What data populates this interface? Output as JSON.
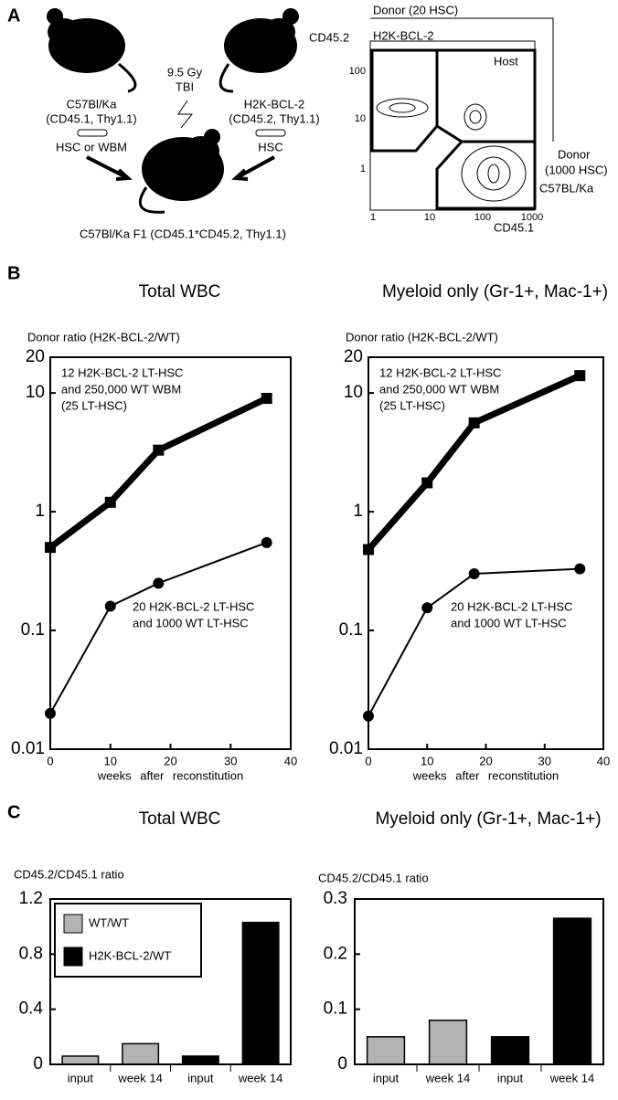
{
  "panel_labels": [
    "A",
    "B",
    "C"
  ],
  "panel_a": {
    "dose": [
      "9.5 Gy",
      "TBI"
    ],
    "donor_left": [
      "C57Bl/Ka",
      "(CD45.1, Thy1.1)"
    ],
    "donor_right": [
      "H2K-BCL-2",
      "(CD45.2, Thy1.1)"
    ],
    "cells_left": "HSC or WBM",
    "cells_right": "HSC",
    "recipient": "C57Bl/Ka F1 (CD45.1*CD45.2, Thy1.1)",
    "flow": {
      "top_label": "Donor (20 HSC)",
      "y_label": "CD45.2",
      "gate_bcl2": "H2K-BCL-2",
      "gate_host": "Host",
      "gate_donor": [
        "Donor",
        "(1000 HSC)",
        "C57BL/Ka"
      ],
      "x_label": "CD45.1",
      "xticks": [
        "1",
        "10",
        "100",
        "1000"
      ],
      "yticks": [
        "1",
        "10",
        "100"
      ]
    }
  },
  "chart_data": [
    {
      "type": "line",
      "title": "Total WBC",
      "ylabel": "Donor ratio (H2K-BCL-2/WT)",
      "xlabel": "weeks after reconstitution",
      "x": [
        0,
        10,
        18,
        36
      ],
      "xlim": [
        0,
        40
      ],
      "xticks": [
        0,
        10,
        20,
        30,
        40
      ],
      "ylim": [
        0.01,
        20
      ],
      "yticks": [
        0.01,
        0.1,
        1,
        10,
        20
      ],
      "log_y": true,
      "series": [
        {
          "annotation": [
            "12 H2K-BCL-2 LT-HSC",
            "and 250,000 WT WBM",
            "(25 LT-HSC)"
          ],
          "color": "#000000",
          "marker": "square",
          "line_width": 7,
          "values": [
            0.5,
            1.2,
            3.3,
            9
          ]
        },
        {
          "annotation": [
            "20 H2K-BCL-2 LT-HSC",
            "and 1000 WT LT-HSC"
          ],
          "color": "#000000",
          "marker": "circle",
          "line_width": 2,
          "values": [
            0.02,
            0.16,
            0.25,
            0.55
          ]
        }
      ]
    },
    {
      "type": "line",
      "title": "Myeloid only (Gr-1+, Mac-1+)",
      "ylabel": "Donor ratio (H2K-BCL-2/WT)",
      "xlabel": "weeks after reconstitution",
      "x": [
        0,
        10,
        18,
        36
      ],
      "xlim": [
        0,
        40
      ],
      "xticks": [
        0,
        10,
        20,
        30,
        40
      ],
      "ylim": [
        0.01,
        20
      ],
      "yticks": [
        0.01,
        0.1,
        1,
        10,
        20
      ],
      "log_y": true,
      "series": [
        {
          "annotation": [
            "12 H2K-BCL-2 LT-HSC",
            "and 250,000 WT WBM",
            "(25 LT-HSC)"
          ],
          "color": "#000000",
          "marker": "square",
          "line_width": 7,
          "values": [
            0.48,
            1.75,
            5.6,
            14
          ]
        },
        {
          "annotation": [
            "20 H2K-BCL-2 LT-HSC",
            "and 1000 WT LT-HSC"
          ],
          "color": "#000000",
          "marker": "circle",
          "line_width": 2,
          "values": [
            0.019,
            0.155,
            0.3,
            0.33
          ]
        }
      ]
    },
    {
      "type": "bar",
      "title": "Total WBC",
      "ylabel": "CD45.2/CD45.1 ratio",
      "categories": [
        "input",
        "week 14",
        "input",
        "week 14"
      ],
      "ylim": [
        0,
        1.2
      ],
      "yticks": [
        0,
        0.4,
        0.8,
        1.2
      ],
      "legend": "upper left",
      "series": [
        {
          "name": "WT/WT",
          "color": "#b3b3b3",
          "values": [
            0.06,
            0.15,
            null,
            null
          ]
        },
        {
          "name": "H2K-BCL-2/WT",
          "color": "#000000",
          "values": [
            null,
            null,
            0.06,
            1.03
          ]
        }
      ]
    },
    {
      "type": "bar",
      "title": "Myeloid only (Gr-1+, Mac-1+)",
      "ylabel": "CD45.2/CD45.1 ratio",
      "categories": [
        "input",
        "week 14",
        "input",
        "week 14"
      ],
      "ylim": [
        0,
        0.3
      ],
      "yticks": [
        0,
        0.1,
        0.2,
        0.3
      ],
      "legend": "none",
      "series": [
        {
          "color": "#b3b3b3",
          "values": [
            0.05,
            0.08,
            null,
            null
          ]
        },
        {
          "color": "#000000",
          "values": [
            null,
            null,
            0.05,
            0.265
          ]
        }
      ]
    }
  ]
}
